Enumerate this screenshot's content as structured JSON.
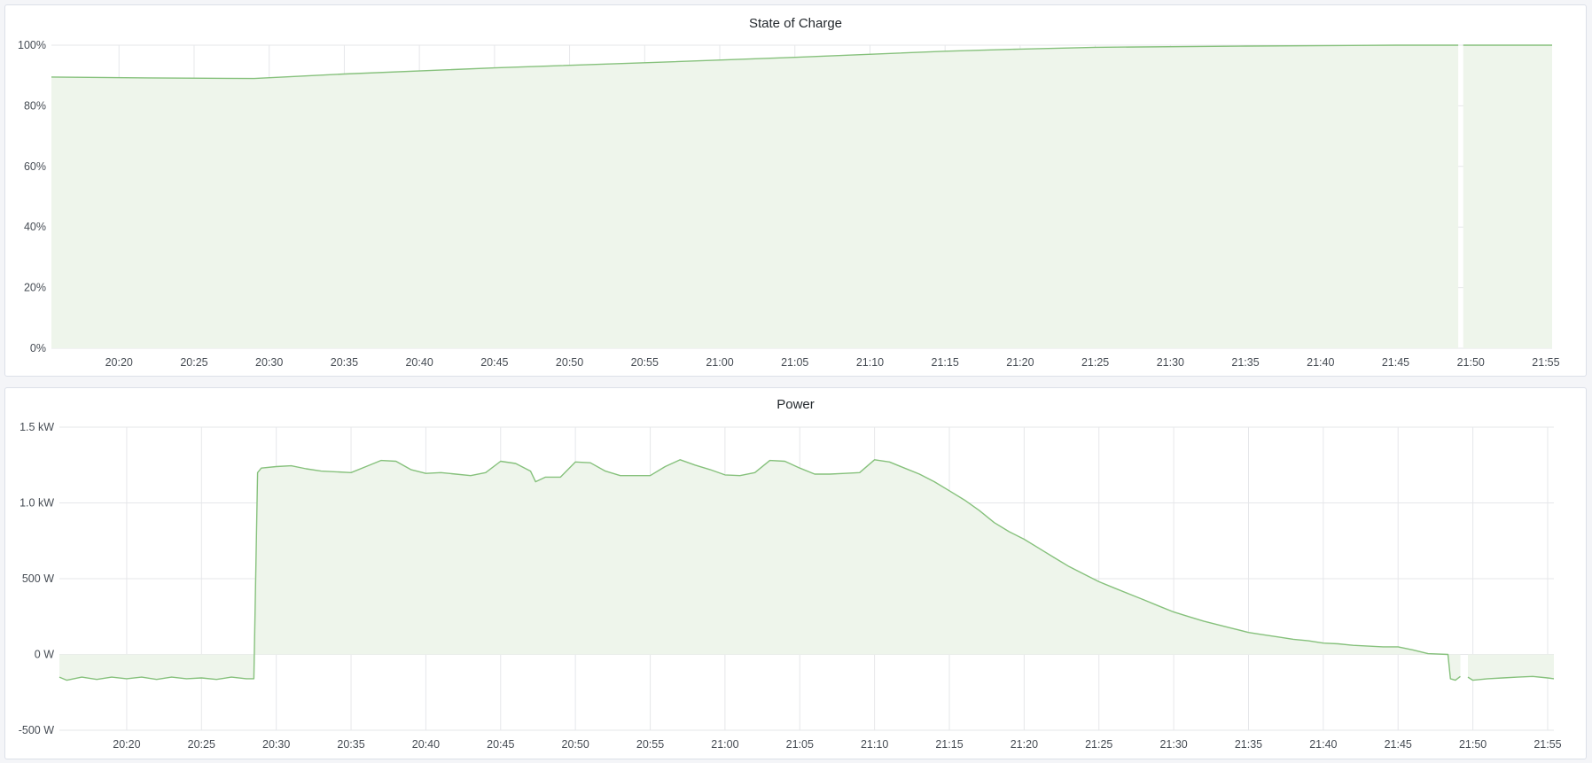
{
  "colors": {
    "line": "#86c17c",
    "fill": "#eef5eb",
    "grid": "#e6e7ea"
  },
  "chart_data": [
    {
      "type": "area",
      "title": "State of Charge",
      "xlim": [
        "20:15:30",
        "21:55:25"
      ],
      "ylim": [
        0,
        100
      ],
      "grid": true,
      "yticks": [
        0,
        20,
        40,
        60,
        80,
        100
      ],
      "ytick_labels": [
        "0%",
        "20%",
        "40%",
        "60%",
        "80%",
        "100%"
      ],
      "xticks": [
        "20:20",
        "20:25",
        "20:30",
        "20:35",
        "20:40",
        "20:45",
        "20:50",
        "20:55",
        "21:00",
        "21:05",
        "21:10",
        "21:15",
        "21:20",
        "21:25",
        "21:30",
        "21:35",
        "21:40",
        "21:45",
        "21:50",
        "21:55"
      ],
      "points": [
        [
          "20:15:30",
          89.5
        ],
        [
          "20:22:00",
          89.2
        ],
        [
          "20:29:00",
          89.0
        ],
        [
          "20:35:00",
          90.5
        ],
        [
          "20:45:00",
          92.5
        ],
        [
          "20:55:00",
          94.2
        ],
        [
          "21:05:00",
          96.0
        ],
        [
          "21:15:00",
          98.0
        ],
        [
          "21:20:00",
          98.7
        ],
        [
          "21:25:00",
          99.3
        ],
        [
          "21:35:00",
          99.7
        ],
        [
          "21:45:00",
          100
        ],
        [
          "21:49:10",
          100
        ],
        [
          "21:49:20",
          null
        ],
        [
          "21:49:30",
          100
        ],
        [
          "21:55:25",
          100
        ]
      ]
    },
    {
      "type": "area",
      "title": "Power",
      "xlim": [
        "20:15:30",
        "21:55:25"
      ],
      "ylim": [
        -500,
        1500
      ],
      "grid": true,
      "yticks": [
        -500,
        0,
        500,
        1000,
        1500
      ],
      "ytick_labels": [
        "-500 W",
        "0 W",
        "500 W",
        "1.0 kW",
        "1.5 kW"
      ],
      "xticks": [
        "20:20",
        "20:25",
        "20:30",
        "20:35",
        "20:40",
        "20:45",
        "20:50",
        "20:55",
        "21:00",
        "21:05",
        "21:10",
        "21:15",
        "21:20",
        "21:25",
        "21:30",
        "21:35",
        "21:40",
        "21:45",
        "21:50",
        "21:55"
      ],
      "points": [
        [
          "20:15:30",
          -150
        ],
        [
          "20:16:00",
          -170
        ],
        [
          "20:17:00",
          -150
        ],
        [
          "20:18:00",
          -165
        ],
        [
          "20:19:00",
          -150
        ],
        [
          "20:20:00",
          -160
        ],
        [
          "20:21:00",
          -150
        ],
        [
          "20:22:00",
          -165
        ],
        [
          "20:23:00",
          -150
        ],
        [
          "20:24:00",
          -160
        ],
        [
          "20:25:00",
          -155
        ],
        [
          "20:26:00",
          -165
        ],
        [
          "20:27:00",
          -150
        ],
        [
          "20:28:00",
          -160
        ],
        [
          "20:28:30",
          -160
        ],
        [
          "20:28:45",
          1200
        ],
        [
          "20:29:00",
          1230
        ],
        [
          "20:30:00",
          1240
        ],
        [
          "20:31:00",
          1245
        ],
        [
          "20:32:00",
          1225
        ],
        [
          "20:33:00",
          1210
        ],
        [
          "20:34:00",
          1205
        ],
        [
          "20:35:00",
          1200
        ],
        [
          "20:36:00",
          1240
        ],
        [
          "20:37:00",
          1280
        ],
        [
          "20:38:00",
          1275
        ],
        [
          "20:39:00",
          1220
        ],
        [
          "20:40:00",
          1195
        ],
        [
          "20:41:00",
          1200
        ],
        [
          "20:42:00",
          1190
        ],
        [
          "20:43:00",
          1180
        ],
        [
          "20:44:00",
          1200
        ],
        [
          "20:45:00",
          1275
        ],
        [
          "20:46:00",
          1260
        ],
        [
          "20:47:00",
          1210
        ],
        [
          "20:47:20",
          1140
        ],
        [
          "20:48:00",
          1170
        ],
        [
          "20:49:00",
          1170
        ],
        [
          "20:50:00",
          1270
        ],
        [
          "20:51:00",
          1265
        ],
        [
          "20:52:00",
          1210
        ],
        [
          "20:53:00",
          1180
        ],
        [
          "20:54:00",
          1180
        ],
        [
          "20:55:00",
          1180
        ],
        [
          "20:56:00",
          1240
        ],
        [
          "20:57:00",
          1285
        ],
        [
          "20:58:00",
          1250
        ],
        [
          "20:59:00",
          1220
        ],
        [
          "21:00:00",
          1185
        ],
        [
          "21:01:00",
          1180
        ],
        [
          "21:02:00",
          1200
        ],
        [
          "21:03:00",
          1280
        ],
        [
          "21:04:00",
          1275
        ],
        [
          "21:05:00",
          1230
        ],
        [
          "21:06:00",
          1190
        ],
        [
          "21:07:00",
          1190
        ],
        [
          "21:08:00",
          1195
        ],
        [
          "21:09:00",
          1200
        ],
        [
          "21:10:00",
          1285
        ],
        [
          "21:11:00",
          1270
        ],
        [
          "21:12:00",
          1230
        ],
        [
          "21:13:00",
          1190
        ],
        [
          "21:14:00",
          1140
        ],
        [
          "21:15:00",
          1080
        ],
        [
          "21:16:00",
          1020
        ],
        [
          "21:17:00",
          950
        ],
        [
          "21:18:00",
          870
        ],
        [
          "21:19:00",
          810
        ],
        [
          "21:20:00",
          760
        ],
        [
          "21:21:00",
          700
        ],
        [
          "21:22:00",
          640
        ],
        [
          "21:23:00",
          580
        ],
        [
          "21:24:00",
          530
        ],
        [
          "21:25:00",
          480
        ],
        [
          "21:26:00",
          440
        ],
        [
          "21:27:00",
          400
        ],
        [
          "21:28:00",
          360
        ],
        [
          "21:29:00",
          320
        ],
        [
          "21:30:00",
          280
        ],
        [
          "21:31:00",
          250
        ],
        [
          "21:32:00",
          220
        ],
        [
          "21:33:00",
          195
        ],
        [
          "21:34:00",
          170
        ],
        [
          "21:35:00",
          145
        ],
        [
          "21:36:00",
          130
        ],
        [
          "21:37:00",
          115
        ],
        [
          "21:38:00",
          100
        ],
        [
          "21:39:00",
          90
        ],
        [
          "21:40:00",
          75
        ],
        [
          "21:41:00",
          70
        ],
        [
          "21:42:00",
          60
        ],
        [
          "21:43:00",
          55
        ],
        [
          "21:44:00",
          50
        ],
        [
          "21:45:00",
          50
        ],
        [
          "21:46:00",
          30
        ],
        [
          "21:47:00",
          5
        ],
        [
          "21:48:20",
          0
        ],
        [
          "21:48:30",
          -160
        ],
        [
          "21:48:50",
          -170
        ],
        [
          "21:49:10",
          -145
        ],
        [
          "21:49:20",
          null
        ],
        [
          "21:49:40",
          -150
        ],
        [
          "21:50:00",
          -170
        ],
        [
          "21:51:00",
          -160
        ],
        [
          "21:52:00",
          -155
        ],
        [
          "21:53:00",
          -150
        ],
        [
          "21:54:00",
          -145
        ],
        [
          "21:55:00",
          -155
        ],
        [
          "21:55:25",
          -160
        ]
      ]
    }
  ]
}
